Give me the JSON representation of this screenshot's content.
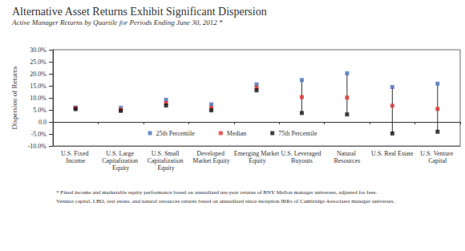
{
  "chart_data": {
    "type": "scatter",
    "title": "Alternative Asset Returns Exhibit Significant Dispersion",
    "subtitle": "Active Manager Returns by Quartile for Periods Ending June 30, 2012 *",
    "y_label": "Dispersion of Returns",
    "categories": [
      "U.S. Fixed Income",
      "U.S. Large Capitalization Equity",
      "U.S. Small Capitalization Equity",
      "Developed Market Equity",
      "Emerging Market Equity",
      "U.S. Leveraged Buyouts",
      "Natural Resources",
      "U.S. Real Estate",
      "U.S. Venture Capital"
    ],
    "series": [
      {
        "name": "25th Percentile",
        "color": "#4a6fb5",
        "marker": "square",
        "values": [
          6.0,
          5.9,
          9.2,
          7.3,
          15.6,
          17.4,
          20.2,
          14.5,
          15.9
        ]
      },
      {
        "name": "Median",
        "color": "#e0302a",
        "marker": "square",
        "values": [
          5.7,
          5.0,
          7.8,
          5.8,
          14.2,
          10.3,
          10.1,
          6.7,
          5.4
        ]
      },
      {
        "name": "75th Percentile",
        "color": "#111111",
        "marker": "square",
        "values": [
          5.3,
          4.6,
          6.8,
          4.8,
          13.1,
          3.7,
          3.1,
          -4.8,
          -4.1
        ]
      }
    ],
    "ylim": [
      -10,
      30
    ],
    "yticks": [
      {
        "value": -10,
        "label": "-10.0%"
      },
      {
        "value": -5,
        "label": "-5.0%"
      },
      {
        "value": 0,
        "label": "0.0"
      },
      {
        "value": 5,
        "label": "5.0%"
      },
      {
        "value": 10,
        "label": "10.0%"
      },
      {
        "value": 15,
        "label": "15.0%"
      },
      {
        "value": 20,
        "label": "20.0%"
      },
      {
        "value": 25,
        "label": "25.0%"
      },
      {
        "value": 30,
        "label": "30.0%"
      }
    ],
    "grid": false,
    "legend": "bottom",
    "footnotes": [
      "* Fixed income and marketable equity performance based on annualized ten-year returns of BNY Mellon manager universes, adjusted for fees.",
      "Venture capital, LBO, real estate, and natural resources returns based on annualized since-inception IRRs of Cambridge Associates manager universes."
    ]
  }
}
